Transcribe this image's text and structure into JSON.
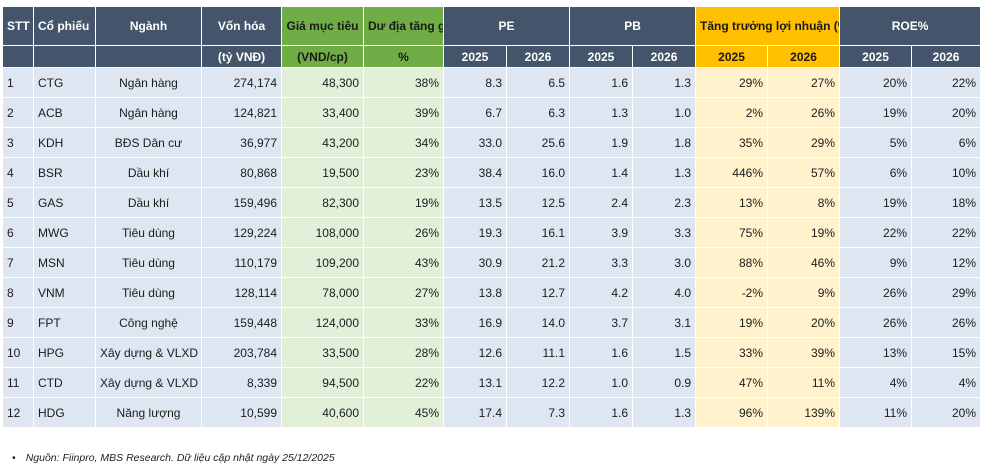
{
  "header": {
    "stt": "STT",
    "ticker": "Cổ phiếu",
    "sector": "Ngành",
    "mcap": "Vốn hóa",
    "target": "Giá mục tiêu",
    "upside": "Dư địa tăng giá",
    "pe": "PE",
    "pb": "PB",
    "growth": "Tăng trưởng lợi nhuận (%)",
    "roe": "ROE%",
    "mcap_unit": "(tỷ VNĐ)",
    "target_unit": "(VND/cp)",
    "upside_unit": "%",
    "years": [
      "2025",
      "2026",
      "2025",
      "2026",
      "2025",
      "2026",
      "2025",
      "2026"
    ]
  },
  "rows": [
    {
      "stt": "1",
      "ticker": "CTG",
      "sector": "Ngân hàng",
      "mcap": "274,174",
      "target": "48,300",
      "upside": "38%",
      "pe25": "8.3",
      "pe26": "6.5",
      "pb25": "1.6",
      "pb26": "1.3",
      "g25": "29%",
      "g26": "27%",
      "roe25": "20%",
      "roe26": "22%"
    },
    {
      "stt": "2",
      "ticker": "ACB",
      "sector": "Ngân hàng",
      "mcap": "124,821",
      "target": "33,400",
      "upside": "39%",
      "pe25": "6.7",
      "pe26": "6.3",
      "pb25": "1.3",
      "pb26": "1.0",
      "g25": "2%",
      "g26": "26%",
      "roe25": "19%",
      "roe26": "20%"
    },
    {
      "stt": "3",
      "ticker": "KDH",
      "sector": "BĐS Dân cư",
      "mcap": "36,977",
      "target": "43,200",
      "upside": "34%",
      "pe25": "33.0",
      "pe26": "25.6",
      "pb25": "1.9",
      "pb26": "1.8",
      "g25": "35%",
      "g26": "29%",
      "roe25": "5%",
      "roe26": "6%"
    },
    {
      "stt": "4",
      "ticker": "BSR",
      "sector": "Dầu khí",
      "mcap": "80,868",
      "target": "19,500",
      "upside": "23%",
      "pe25": "38.4",
      "pe26": "16.0",
      "pb25": "1.4",
      "pb26": "1.3",
      "g25": "446%",
      "g26": "57%",
      "roe25": "6%",
      "roe26": "10%"
    },
    {
      "stt": "5",
      "ticker": "GAS",
      "sector": "Dầu khí",
      "mcap": "159,496",
      "target": "82,300",
      "upside": "19%",
      "pe25": "13.5",
      "pe26": "12.5",
      "pb25": "2.4",
      "pb26": "2.3",
      "g25": "13%",
      "g26": "8%",
      "roe25": "19%",
      "roe26": "18%"
    },
    {
      "stt": "6",
      "ticker": "MWG",
      "sector": "Tiêu dùng",
      "mcap": "129,224",
      "target": "108,000",
      "upside": "26%",
      "pe25": "19.3",
      "pe26": "16.1",
      "pb25": "3.9",
      "pb26": "3.3",
      "g25": "75%",
      "g26": "19%",
      "roe25": "22%",
      "roe26": "22%"
    },
    {
      "stt": "7",
      "ticker": "MSN",
      "sector": "Tiêu dùng",
      "mcap": "110,179",
      "target": "109,200",
      "upside": "43%",
      "pe25": "30.9",
      "pe26": "21.2",
      "pb25": "3.3",
      "pb26": "3.0",
      "g25": "88%",
      "g26": "46%",
      "roe25": "9%",
      "roe26": "12%"
    },
    {
      "stt": "8",
      "ticker": "VNM",
      "sector": "Tiêu dùng",
      "mcap": "128,114",
      "target": "78,000",
      "upside": "27%",
      "pe25": "13.8",
      "pe26": "12.7",
      "pb25": "4.2",
      "pb26": "4.0",
      "g25": "-2%",
      "g26": "9%",
      "roe25": "26%",
      "roe26": "29%"
    },
    {
      "stt": "9",
      "ticker": "FPT",
      "sector": "Công nghệ",
      "mcap": "159,448",
      "target": "124,000",
      "upside": "33%",
      "pe25": "16.9",
      "pe26": "14.0",
      "pb25": "3.7",
      "pb26": "3.1",
      "g25": "19%",
      "g26": "20%",
      "roe25": "26%",
      "roe26": "26%"
    },
    {
      "stt": "10",
      "ticker": "HPG",
      "sector": "Xây dựng & VLXD",
      "mcap": "203,784",
      "target": "33,500",
      "upside": "28%",
      "pe25": "12.6",
      "pe26": "11.1",
      "pb25": "1.6",
      "pb26": "1.5",
      "g25": "33%",
      "g26": "39%",
      "roe25": "13%",
      "roe26": "15%"
    },
    {
      "stt": "11",
      "ticker": "CTD",
      "sector": "Xây dựng & VLXD",
      "mcap": "8,339",
      "target": "94,500",
      "upside": "22%",
      "pe25": "13.1",
      "pe26": "12.2",
      "pb25": "1.0",
      "pb26": "0.9",
      "g25": "47%",
      "g26": "11%",
      "roe25": "4%",
      "roe26": "4%"
    },
    {
      "stt": "12",
      "ticker": "HDG",
      "sector": "Năng lượng",
      "mcap": "10,599",
      "target": "40,600",
      "upside": "45%",
      "pe25": "17.4",
      "pe26": "7.3",
      "pb25": "1.6",
      "pb26": "1.3",
      "g25": "96%",
      "g26": "139%",
      "roe25": "11%",
      "roe26": "20%"
    }
  ],
  "source": {
    "bullet": "•",
    "text": "Nguồn: Fiinpro, MBS Research. Dữ liệu cập nhật ngày 25/12/2025"
  },
  "colors": {
    "header_bg": "#44546a",
    "target_header": "#70ad47",
    "growth_header": "#ffc000",
    "row_bg": "#dde6f1",
    "target_cell": "#e2efd9",
    "growth_cell": "#fff2cc"
  }
}
